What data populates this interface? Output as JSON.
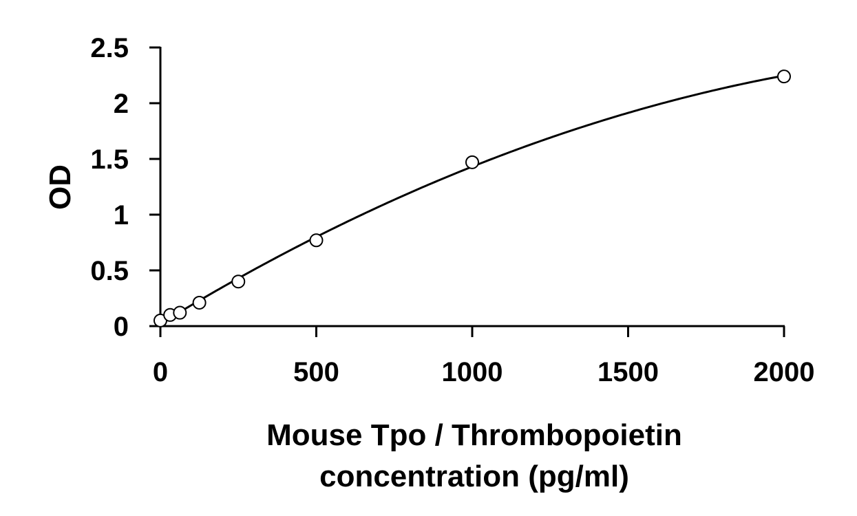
{
  "chart_data": {
    "type": "scatter",
    "title": "",
    "xlabel_lines": [
      "Mouse Tpo / Thrombopoietin",
      "concentration (pg/ml)"
    ],
    "ylabel": "OD",
    "xlim": [
      0,
      2000
    ],
    "ylim": [
      0,
      2.5
    ],
    "x_ticks": [
      0,
      500,
      1000,
      1500,
      2000
    ],
    "y_ticks": [
      0,
      0.5,
      1,
      1.5,
      2,
      2.5
    ],
    "x_tick_labels": [
      "0",
      "500",
      "1000",
      "1500",
      "2000"
    ],
    "y_tick_labels": [
      "0",
      "0.5",
      "1",
      "1.5",
      "2",
      "2.5"
    ],
    "grid": false,
    "legend": "none",
    "series": [
      {
        "x": [
          0,
          31.25,
          62.5,
          125,
          250,
          500,
          1000,
          2000
        ],
        "y": [
          0.05,
          0.1,
          0.12,
          0.21,
          0.4,
          0.77,
          1.47,
          2.24
        ],
        "marker": "open-circle",
        "fit": "smooth-curve"
      }
    ],
    "colors": {
      "line": "#000000",
      "marker_fill": "#ffffff",
      "background": "#ffffff"
    }
  }
}
